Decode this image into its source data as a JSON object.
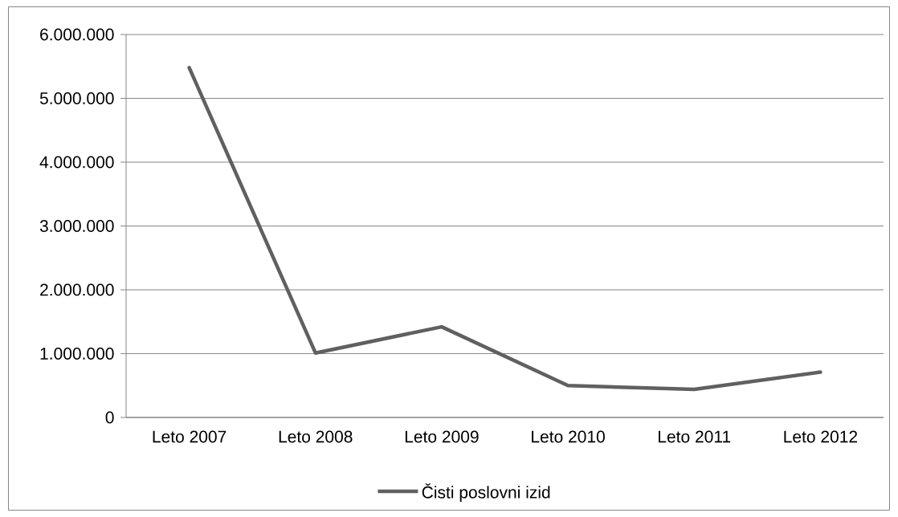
{
  "chart_data": {
    "type": "line",
    "categories": [
      "Leto 2007",
      "Leto 2008",
      "Leto 2009",
      "Leto 2010",
      "Leto 2011",
      "Leto 2012"
    ],
    "series": [
      {
        "name": "Čisti poslovni izid",
        "color": "#606060",
        "values": [
          5480000,
          1010000,
          1420000,
          500000,
          440000,
          710000
        ]
      }
    ],
    "ylim": [
      0,
      6000000
    ],
    "yticks": [
      0,
      {
        "value": 1000000,
        "label": "1.000.000"
      },
      {
        "value": 2000000,
        "label": "2.000.000"
      },
      {
        "value": 3000000,
        "label": "3.000.000"
      },
      {
        "value": 4000000,
        "label": "4.000.000"
      },
      {
        "value": 5000000,
        "label": "5.000.000"
      },
      {
        "value": 6000000,
        "label": "6.000.000"
      }
    ],
    "grid": "y",
    "legend": "bottom",
    "marker": "none",
    "line_style": "solid"
  }
}
